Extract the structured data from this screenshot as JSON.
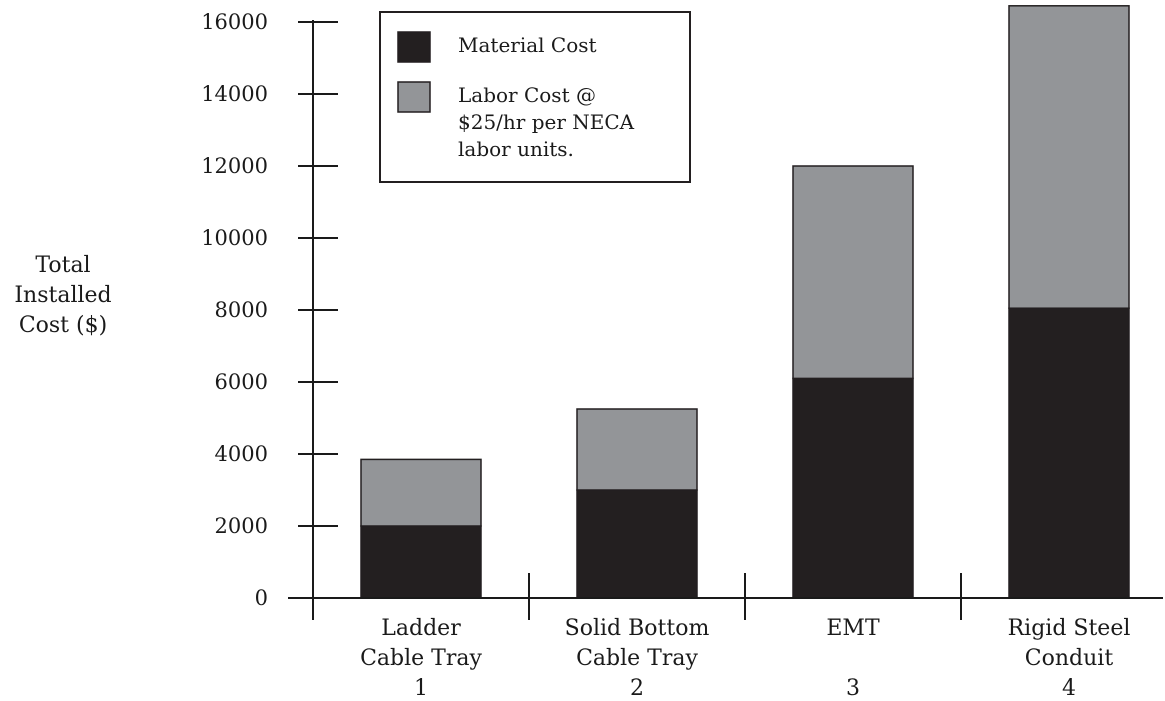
{
  "chart_data": {
    "type": "bar",
    "stacked": true,
    "ylabel": [
      "Total",
      "Installed",
      "Cost ($)"
    ],
    "ylim": [
      0,
      16000
    ],
    "yticks": [
      0,
      2000,
      4000,
      6000,
      8000,
      10000,
      12000,
      14000,
      16000
    ],
    "categories": [
      {
        "lines": [
          "Ladder",
          "Cable Tray"
        ],
        "index": "1"
      },
      {
        "lines": [
          "Solid Bottom",
          "Cable Tray"
        ],
        "index": "2"
      },
      {
        "lines": [
          "EMT"
        ],
        "index": "3"
      },
      {
        "lines": [
          "Rigid Steel",
          "Conduit"
        ],
        "index": "4"
      }
    ],
    "series": [
      {
        "name": "Material Cost",
        "color": "#231f20",
        "values": [
          2000,
          3000,
          6100,
          8050
        ]
      },
      {
        "name": "Labor Cost @ $25/hr per NECA labor units.",
        "color": "#939598",
        "values": [
          1850,
          2250,
          5900,
          8400
        ]
      }
    ],
    "legend": {
      "placement": "top-left",
      "entries": [
        {
          "lines": [
            "Material Cost"
          ],
          "color": "#231f20"
        },
        {
          "lines": [
            "Labor Cost @",
            "$25/hr per NECA",
            "labor units."
          ],
          "color": "#939598"
        }
      ]
    },
    "grid": false
  }
}
